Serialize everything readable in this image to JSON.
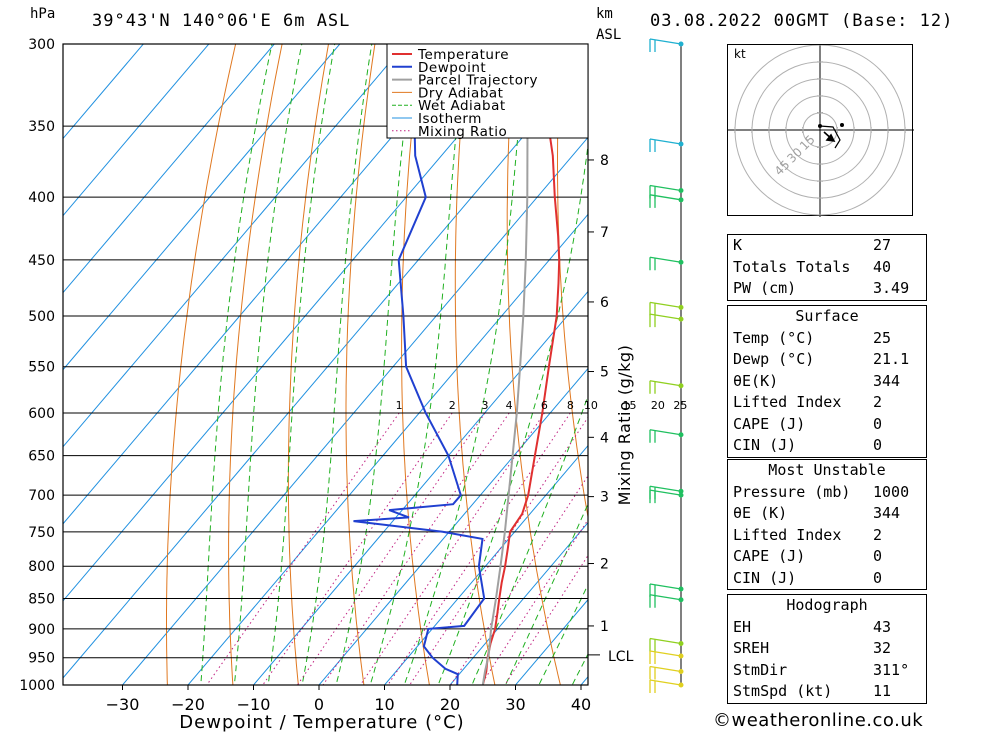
{
  "header": {
    "pressure_unit": "hPa",
    "location": "39°43'N  140°06'E  6m  ASL",
    "km_unit": "km",
    "asl_unit": "ASL",
    "datetime": "03.08.2022  00GMT  (Base: 12)"
  },
  "chart_data": {
    "type": "line",
    "xlabel": "Dewpoint / Temperature (°C)",
    "mixing_ratio_axis_label": "Mixing Ratio (g/kg)",
    "x_ticks": [
      "−30",
      "−20",
      "−10",
      "0",
      "10",
      "20",
      "30",
      "40"
    ],
    "x_tick_values": [
      -30,
      -20,
      -10,
      0,
      10,
      20,
      30,
      40
    ],
    "pressure_levels": [
      300,
      350,
      400,
      450,
      500,
      550,
      600,
      650,
      700,
      750,
      800,
      850,
      900,
      950,
      1000
    ],
    "pressure_ticks": [
      "300",
      "350",
      "400",
      "450",
      "500",
      "550",
      "600",
      "650",
      "700",
      "750",
      "800",
      "850",
      "900",
      "950",
      "1000"
    ],
    "height_ticks": [
      {
        "label": "8",
        "p": 373
      },
      {
        "label": "7",
        "p": 427
      },
      {
        "label": "6",
        "p": 487
      },
      {
        "label": "5",
        "p": 555
      },
      {
        "label": "4",
        "p": 628
      },
      {
        "label": "3",
        "p": 702
      },
      {
        "label": "2",
        "p": 796
      },
      {
        "label": "1",
        "p": 895
      }
    ],
    "lcl": {
      "label": "LCL",
      "p": 945
    },
    "mixing_ratio_labels": [
      "1",
      "2",
      "3",
      "4",
      "6",
      "8",
      "10",
      "15",
      "20",
      "25"
    ],
    "mixing_ratio_values": [
      1,
      2,
      3,
      4,
      6,
      8,
      10,
      15,
      20,
      25
    ],
    "legend": [
      "Temperature",
      "Dewpoint",
      "Parcel Trajectory",
      "Dry Adiabat",
      "Wet Adiabat",
      "Isotherm",
      "Mixing Ratio"
    ],
    "colors": {
      "temperature": "#e03030",
      "dewpoint": "#2040d0",
      "parcel": "#a0a0a0",
      "dry_adiabat": "#e07820",
      "wet_adiabat": "#20b020",
      "isotherm": "#2090e0",
      "mixing_ratio": "#c02080",
      "wind_low": "#e0d020",
      "wind_mid": "#90d020",
      "wind_high": "#20c060",
      "wind_top": "#20b0d0"
    },
    "series": [
      {
        "name": "Temperature",
        "points": [
          [
            1000,
            25.0
          ],
          [
            975,
            23.8
          ],
          [
            950,
            22.2
          ],
          [
            925,
            20.8
          ],
          [
            900,
            19.6
          ],
          [
            875,
            18.0
          ],
          [
            850,
            16.3
          ],
          [
            825,
            14.6
          ],
          [
            800,
            13.0
          ],
          [
            775,
            11.2
          ],
          [
            750,
            9.3
          ],
          [
            725,
            8.8
          ],
          [
            700,
            7.3
          ],
          [
            650,
            3.2
          ],
          [
            600,
            -1.2
          ],
          [
            550,
            -6.2
          ],
          [
            500,
            -11.6
          ],
          [
            470,
            -15.6
          ],
          [
            450,
            -18.5
          ],
          [
            430,
            -21.8
          ],
          [
            400,
            -27.3
          ],
          [
            370,
            -33.0
          ],
          [
            350,
            -37.5
          ],
          [
            320,
            -43.5
          ],
          [
            300,
            -47.8
          ]
        ]
      },
      {
        "name": "Dewpoint",
        "points": [
          [
            1000,
            21.1
          ],
          [
            980,
            19.8
          ],
          [
            970,
            17.2
          ],
          [
            950,
            13.8
          ],
          [
            930,
            11.0
          ],
          [
            900,
            9.4
          ],
          [
            895,
            14.5
          ],
          [
            850,
            14.0
          ],
          [
            800,
            9.0
          ],
          [
            760,
            6.0
          ],
          [
            750,
            -1.0
          ],
          [
            735,
            -16.0
          ],
          [
            730,
            -8.0
          ],
          [
            720,
            -12.0
          ],
          [
            712,
            -3.0
          ],
          [
            700,
            -3.0
          ],
          [
            650,
            -10.0
          ],
          [
            600,
            -19.0
          ],
          [
            550,
            -28.0
          ],
          [
            500,
            -35.0
          ],
          [
            450,
            -43.0
          ],
          [
            400,
            -47.0
          ],
          [
            370,
            -54.0
          ],
          [
            340,
            -60.0
          ],
          [
            320,
            -62.0
          ],
          [
            300,
            -63.0
          ]
        ]
      },
      {
        "name": "Parcel Trajectory",
        "points": [
          [
            1000,
            25.0
          ],
          [
            975,
            23.6
          ],
          [
            945,
            22.0
          ],
          [
            900,
            19.0
          ],
          [
            850,
            15.8
          ],
          [
            800,
            12.3
          ],
          [
            750,
            8.5
          ],
          [
            700,
            4.3
          ],
          [
            650,
            -0.2
          ],
          [
            600,
            -5.1
          ],
          [
            550,
            -10.6
          ],
          [
            500,
            -16.7
          ],
          [
            450,
            -23.6
          ],
          [
            400,
            -31.5
          ],
          [
            350,
            -40.7
          ],
          [
            300,
            -51.5
          ]
        ]
      }
    ]
  },
  "winds": [
    {
      "p": 300,
      "band": "top"
    },
    {
      "p": 362,
      "band": "top"
    },
    {
      "p": 395,
      "band": "high"
    },
    {
      "p": 402,
      "band": "high"
    },
    {
      "p": 452,
      "band": "high"
    },
    {
      "p": 492,
      "band": "mid"
    },
    {
      "p": 503,
      "band": "mid"
    },
    {
      "p": 570,
      "band": "mid"
    },
    {
      "p": 625,
      "band": "high"
    },
    {
      "p": 695,
      "band": "high"
    },
    {
      "p": 700,
      "band": "high"
    },
    {
      "p": 835,
      "band": "high"
    },
    {
      "p": 852,
      "band": "high"
    },
    {
      "p": 925,
      "band": "mid"
    },
    {
      "p": 947,
      "band": "low"
    },
    {
      "p": 975,
      "band": "low"
    },
    {
      "p": 1000,
      "band": "low"
    }
  ],
  "hodograph": {
    "unit_label": "kt",
    "ring_labels": [
      "15",
      "30",
      "45"
    ],
    "ring_values": [
      15,
      30,
      45
    ]
  },
  "indices": {
    "rows": [
      {
        "label": "K",
        "value": "27"
      },
      {
        "label": "Totals Totals",
        "value": "40"
      },
      {
        "label": "PW (cm)",
        "value": "3.49"
      }
    ]
  },
  "surface": {
    "title": "Surface",
    "rows": [
      {
        "label": "Temp (°C)",
        "value": "25"
      },
      {
        "label": "Dewp (°C)",
        "value": "21.1"
      },
      {
        "label": "θE(K)",
        "value": "344"
      },
      {
        "label": "Lifted Index",
        "value": "2"
      },
      {
        "label": "CAPE (J)",
        "value": "0"
      },
      {
        "label": "CIN (J)",
        "value": "0"
      }
    ]
  },
  "most_unstable": {
    "title": "Most Unstable",
    "rows": [
      {
        "label": "Pressure (mb)",
        "value": "1000"
      },
      {
        "label": "θE (K)",
        "value": "344"
      },
      {
        "label": "Lifted Index",
        "value": "2"
      },
      {
        "label": "CAPE (J)",
        "value": "0"
      },
      {
        "label": "CIN (J)",
        "value": "0"
      }
    ]
  },
  "hodograph_table": {
    "title": "Hodograph",
    "rows": [
      {
        "label": "EH",
        "value": "43"
      },
      {
        "label": "SREH",
        "value": "32"
      },
      {
        "label": "StmDir",
        "value": "311°"
      },
      {
        "label": "StmSpd (kt)",
        "value": "11"
      }
    ]
  },
  "footer": {
    "copyright": "©weatheronline.co.uk"
  }
}
